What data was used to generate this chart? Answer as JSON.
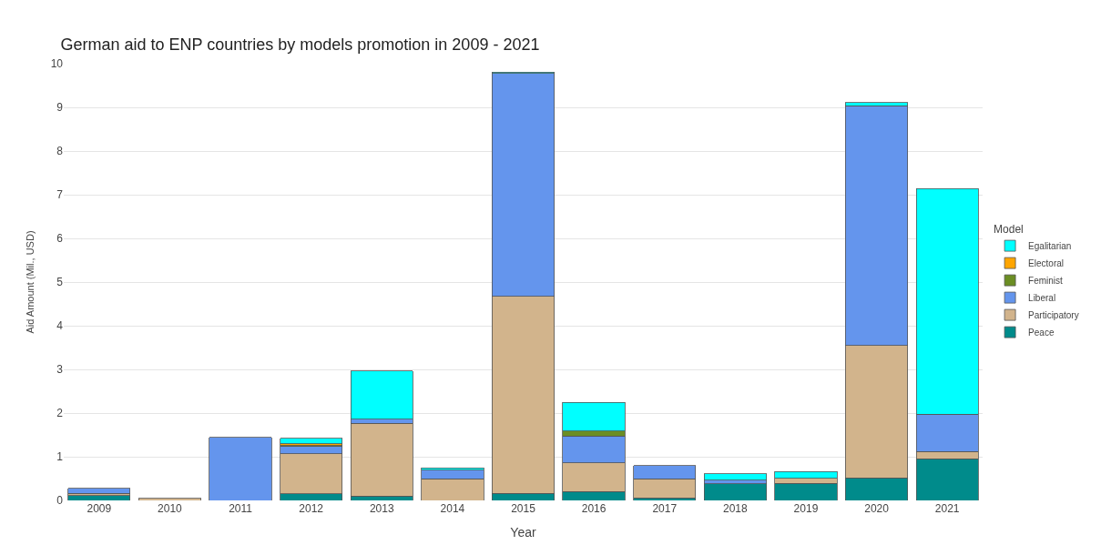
{
  "chart_data": {
    "type": "bar",
    "stacked": true,
    "title": "German aid to ENP countries by models promotion in 2009 - 2021",
    "xlabel": "Year",
    "ylabel": "Aid Amount (Mil., USD)",
    "legend_title": "Model",
    "legend": "right",
    "grid": "y",
    "categories": [
      "2009",
      "2010",
      "2011",
      "2012",
      "2013",
      "2014",
      "2015",
      "2016",
      "2017",
      "2018",
      "2019",
      "2020",
      "2021"
    ],
    "ylim": [
      0,
      10
    ],
    "yticks": [
      0,
      1,
      2,
      3,
      4,
      5,
      6,
      7,
      8,
      9,
      10
    ],
    "series": [
      {
        "name": "Peace",
        "color": "#008b8b",
        "values": [
          0.11,
          null,
          null,
          0.15,
          0.1,
          null,
          0.16,
          0.2,
          0.06,
          0.38,
          0.39,
          0.52,
          0.95
        ]
      },
      {
        "name": "Participatory",
        "color": "#d2b48c",
        "values": [
          0.05,
          0.05,
          null,
          0.92,
          1.67,
          0.5,
          4.51,
          0.66,
          0.44,
          null,
          0.12,
          3.03,
          0.17
        ]
      },
      {
        "name": "Liberal",
        "color": "#6495ed",
        "values": [
          0.12,
          null,
          1.44,
          0.16,
          0.09,
          0.19,
          5.11,
          0.61,
          0.3,
          0.08,
          null,
          5.49,
          0.85
        ]
      },
      {
        "name": "Feminist",
        "color": "#6b8e23",
        "values": [
          null,
          null,
          null,
          0.03,
          null,
          null,
          null,
          0.12,
          null,
          null,
          null,
          null,
          null
        ]
      },
      {
        "name": "Electoral",
        "color": "#ffa500",
        "values": [
          null,
          null,
          null,
          0.04,
          null,
          null,
          null,
          null,
          null,
          null,
          null,
          null,
          null
        ]
      },
      {
        "name": "Egalitarian",
        "color": "#00ffff",
        "values": [
          null,
          null,
          null,
          0.12,
          1.1,
          0.05,
          0.03,
          0.65,
          null,
          0.15,
          0.15,
          0.07,
          5.17
        ]
      }
    ]
  }
}
